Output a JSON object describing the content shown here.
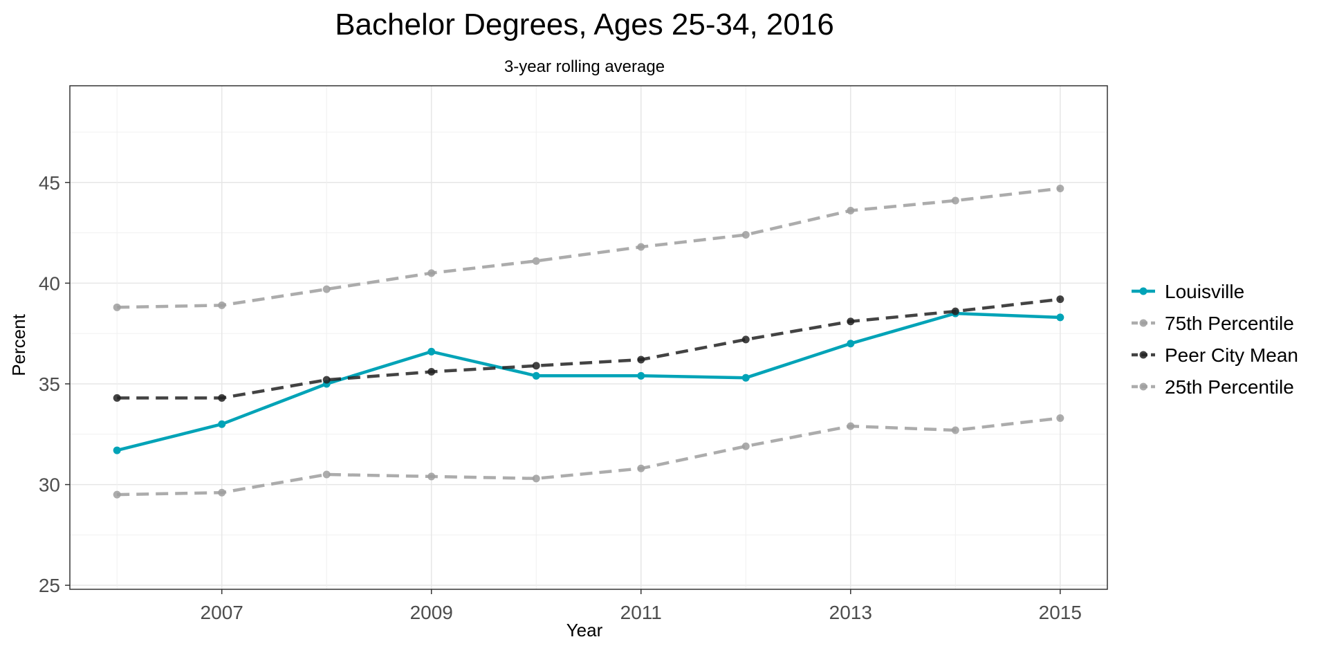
{
  "chart_data": {
    "type": "line",
    "title": "Bachelor Degrees, Ages 25-34, 2016",
    "subtitle": "3-year rolling average",
    "xlabel": "Year",
    "ylabel": "Percent",
    "x": [
      2006,
      2007,
      2008,
      2009,
      2010,
      2011,
      2012,
      2013,
      2014,
      2015
    ],
    "x_ticks": [
      2007,
      2009,
      2011,
      2013,
      2015
    ],
    "x_tick_labels": [
      "2007",
      "2009",
      "2011",
      "2013",
      "2015"
    ],
    "y_ticks": [
      25,
      30,
      35,
      40,
      45
    ],
    "y_tick_labels": [
      "25",
      "30",
      "35",
      "40",
      "45"
    ],
    "xlim": [
      2005.55,
      2015.45
    ],
    "ylim": [
      24.8,
      49.8
    ],
    "grid": true,
    "legend_position": "right",
    "series": [
      {
        "name": "Louisville",
        "color": "#00A3B7",
        "dash": "solid",
        "values": [
          31.7,
          33.0,
          35.0,
          36.6,
          35.4,
          35.4,
          35.3,
          37.0,
          38.5,
          38.3
        ]
      },
      {
        "name": "75th Percentile",
        "color": "#9E9E9E",
        "dash": "dashed",
        "values": [
          38.8,
          38.9,
          39.7,
          40.5,
          41.1,
          41.8,
          42.4,
          43.6,
          44.1,
          44.7
        ]
      },
      {
        "name": "Peer City Mean",
        "color": "#222222",
        "dash": "dashed",
        "values": [
          34.3,
          34.3,
          35.2,
          35.6,
          35.9,
          36.2,
          37.2,
          38.1,
          38.6,
          39.2
        ]
      },
      {
        "name": "25th Percentile",
        "color": "#9E9E9E",
        "dash": "dashed",
        "values": [
          29.5,
          29.6,
          30.5,
          30.4,
          30.3,
          30.8,
          31.9,
          32.9,
          32.7,
          33.3
        ]
      }
    ]
  }
}
